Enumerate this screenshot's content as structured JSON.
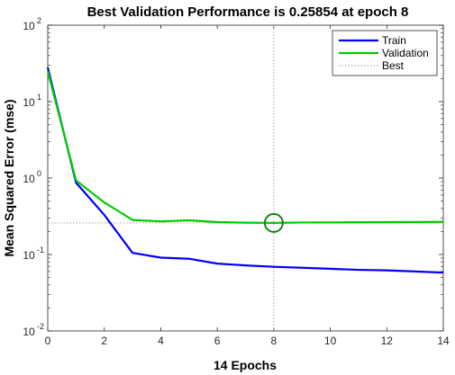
{
  "chart_data": {
    "type": "line",
    "title": "Best Validation Performance is 0.25854 at epoch 8",
    "xlabel": "14 Epochs",
    "ylabel": "Mean Squared Error  (mse)",
    "xlim": [
      0,
      14
    ],
    "ylim": [
      0.01,
      100
    ],
    "yscale": "log",
    "x_ticks": [
      "0",
      "2",
      "4",
      "6",
      "8",
      "10",
      "12",
      "14"
    ],
    "y_ticks": [
      {
        "base": "10",
        "exp": "-2"
      },
      {
        "base": "10",
        "exp": "-1"
      },
      {
        "base": "10",
        "exp": "0"
      },
      {
        "base": "10",
        "exp": "1"
      },
      {
        "base": "10",
        "exp": "2"
      }
    ],
    "x": [
      0,
      1,
      2,
      3,
      4,
      5,
      6,
      7,
      8,
      9,
      10,
      11,
      12,
      13,
      14
    ],
    "series": [
      {
        "name": "Train",
        "color": "#0000ff",
        "values": [
          28,
          0.87,
          0.33,
          0.105,
          0.091,
          0.088,
          0.076,
          0.072,
          0.069,
          0.067,
          0.065,
          0.063,
          0.062,
          0.06,
          0.058
        ]
      },
      {
        "name": "Validation",
        "color": "#00cc00",
        "values": [
          25,
          0.93,
          0.48,
          0.283,
          0.271,
          0.28,
          0.265,
          0.261,
          0.259,
          0.262,
          0.263,
          0.264,
          0.265,
          0.266,
          0.267
        ]
      }
    ],
    "best": {
      "name": "Best",
      "epoch": 8,
      "value": 0.25854,
      "color": "#999999"
    },
    "legend_position": "top-right",
    "grid": false
  }
}
